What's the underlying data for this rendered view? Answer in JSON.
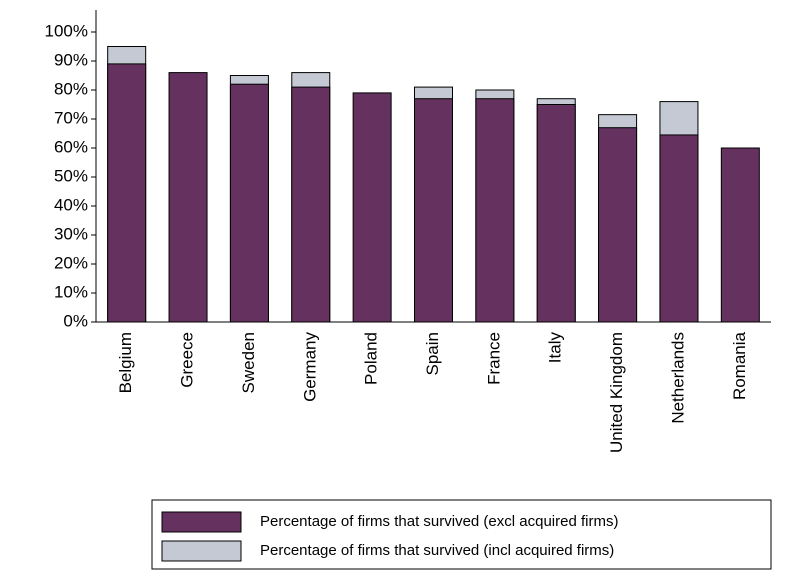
{
  "chart_data": {
    "type": "bar",
    "overlap": true,
    "categories": [
      "Belgium",
      "Greece",
      "Sweden",
      "Germany",
      "Poland",
      "Spain",
      "France",
      "Italy",
      "United Kingdom",
      "Netherlands",
      "Romania"
    ],
    "series": [
      {
        "name": "Percentage of firms that survived (excl acquired firms)",
        "color": "#65325f",
        "values": [
          89,
          86,
          82,
          81,
          79,
          77,
          77,
          75,
          67,
          64.5,
          60
        ]
      },
      {
        "name": "Percentage of firms that survived (incl acquired firms)",
        "color": "#c4c9d4",
        "values": [
          95,
          null,
          85,
          86,
          null,
          81,
          80,
          77,
          71.5,
          76,
          null
        ]
      }
    ],
    "ylim": [
      0,
      100
    ],
    "yticks": [
      {
        "value": 0,
        "label": "0%"
      },
      {
        "value": 10,
        "label": "10%"
      },
      {
        "value": 20,
        "label": "20%"
      },
      {
        "value": 30,
        "label": "30%"
      },
      {
        "value": 40,
        "label": "40%"
      },
      {
        "value": 50,
        "label": "50%"
      },
      {
        "value": 60,
        "label": "60%"
      },
      {
        "value": 70,
        "label": "70%"
      },
      {
        "value": 80,
        "label": "80%"
      },
      {
        "value": 90,
        "label": "90%"
      },
      {
        "value": 100,
        "label": "100%"
      }
    ]
  }
}
